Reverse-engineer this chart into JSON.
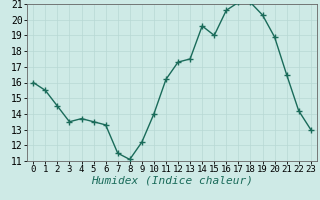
{
  "x": [
    0,
    1,
    2,
    3,
    4,
    5,
    6,
    7,
    8,
    9,
    10,
    11,
    12,
    13,
    14,
    15,
    16,
    17,
    18,
    19,
    20,
    21,
    22,
    23
  ],
  "y": [
    16.0,
    15.5,
    14.5,
    13.5,
    13.7,
    13.5,
    13.3,
    11.5,
    11.1,
    12.2,
    14.0,
    16.2,
    17.3,
    17.5,
    19.6,
    19.0,
    20.6,
    21.1,
    21.1,
    20.3,
    18.9,
    16.5,
    14.2,
    13.0
  ],
  "line_color": "#1a6b5a",
  "marker": "+",
  "marker_size": 4,
  "marker_linewidth": 1.0,
  "line_width": 1.0,
  "xlabel": "Humidex (Indice chaleur)",
  "xlabel_fontsize": 8,
  "xlabel_style": "italic",
  "ylim": [
    11,
    21
  ],
  "xlim_min": -0.5,
  "xlim_max": 23.5,
  "yticks": [
    11,
    12,
    13,
    14,
    15,
    16,
    17,
    18,
    19,
    20,
    21
  ],
  "xticks": [
    0,
    1,
    2,
    3,
    4,
    5,
    6,
    7,
    8,
    9,
    10,
    11,
    12,
    13,
    14,
    15,
    16,
    17,
    18,
    19,
    20,
    21,
    22,
    23
  ],
  "bg_color": "#ceeae6",
  "grid_color": "#b8d8d4",
  "tick_fontsize": 6.5,
  "ytick_fontsize": 7
}
